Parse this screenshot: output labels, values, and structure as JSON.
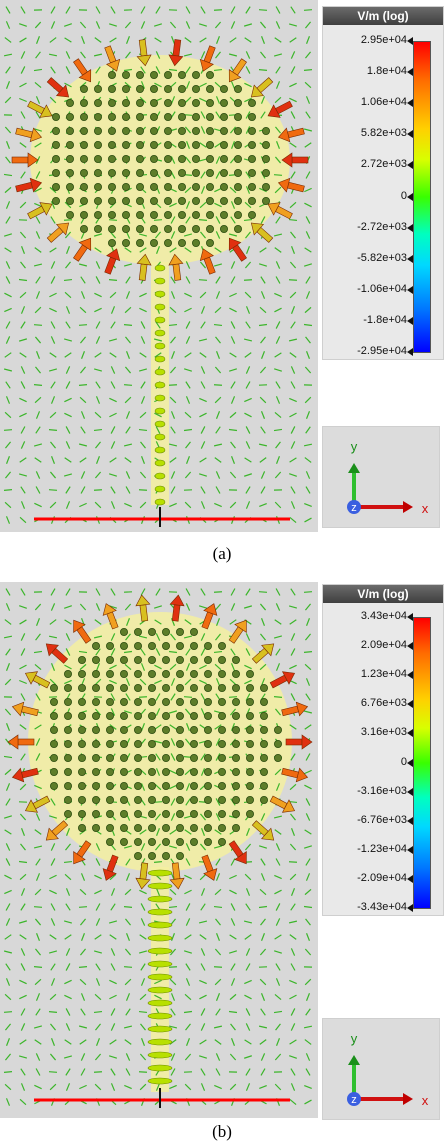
{
  "panel_a": {
    "unit_label": "V/m (log)",
    "ticks": [
      "2.95e+04",
      "1.8e+04",
      "1.06e+04",
      "5.82e+03",
      "2.72e+03",
      "0",
      "-2.72e+03",
      "-5.82e+03",
      "-1.06e+04",
      "-1.8e+04",
      "-2.95e+04"
    ],
    "caption": "(a)"
  },
  "panel_b": {
    "unit_label": "V/m (log)",
    "ticks": [
      "3.43e+04",
      "2.09e+04",
      "1.23e+04",
      "6.76e+03",
      "3.16e+03",
      "0",
      "-3.16e+03",
      "-6.76e+03",
      "-1.23e+04",
      "-2.09e+04",
      "-3.43e+04"
    ],
    "caption": "(b)"
  },
  "axes": {
    "y": "y",
    "z": "z",
    "x": "x"
  },
  "colors": {
    "accent": "#ff0000",
    "field": "#40c020",
    "patch": "#f4f0a0"
  }
}
